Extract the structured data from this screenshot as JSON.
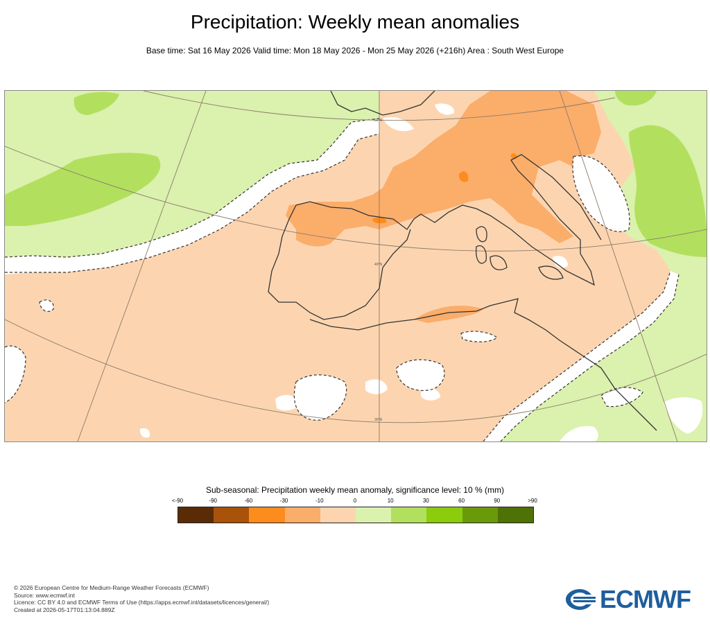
{
  "header": {
    "title": "Precipitation: Weekly mean anomalies",
    "subtitle": "Base time: Sat 16 May 2026 Valid time: Mon 18 May 2026 - Mon 25 May 2026 (+216h) Area : South West Europe"
  },
  "map": {
    "region": "South West Europe",
    "grid_labels": [
      "50°N",
      "40°N",
      "30°N"
    ],
    "colors": {
      "land_dry_10": "#fcd5b0",
      "dry_30": "#fbad6a",
      "dry_60": "#fd8c1e",
      "wet_10": "#dbf1ae",
      "wet_30": "#b2e05e",
      "not_significant": "#ffffff"
    }
  },
  "legend": {
    "title": "Sub-seasonal: Precipitation weekly mean anomaly, significance level: 10 % (mm)",
    "labels": [
      "<-90",
      "-90",
      "-60",
      "-30",
      "-10",
      "0",
      "10",
      "30",
      "60",
      "90",
      ">90"
    ],
    "colors": [
      "#5a2c05",
      "#a8520a",
      "#fd8c1e",
      "#fbad6a",
      "#fcd5b0",
      "#dbf1ae",
      "#b2e05e",
      "#8ccc0c",
      "#6a9a0a",
      "#4f7207"
    ]
  },
  "footer": {
    "lines": [
      "© 2026 European Centre for Medium-Range Weather Forecasts (ECMWF)",
      "Source: www.ecmwf.int",
      "Licence: CC BY 4.0 and ECMWF Terms of Use (https://apps.ecmwf.int/datasets/licences/general/)",
      "Created at 2026-05-17T01:13:04.889Z"
    ],
    "logo_text": "ECMWF"
  }
}
